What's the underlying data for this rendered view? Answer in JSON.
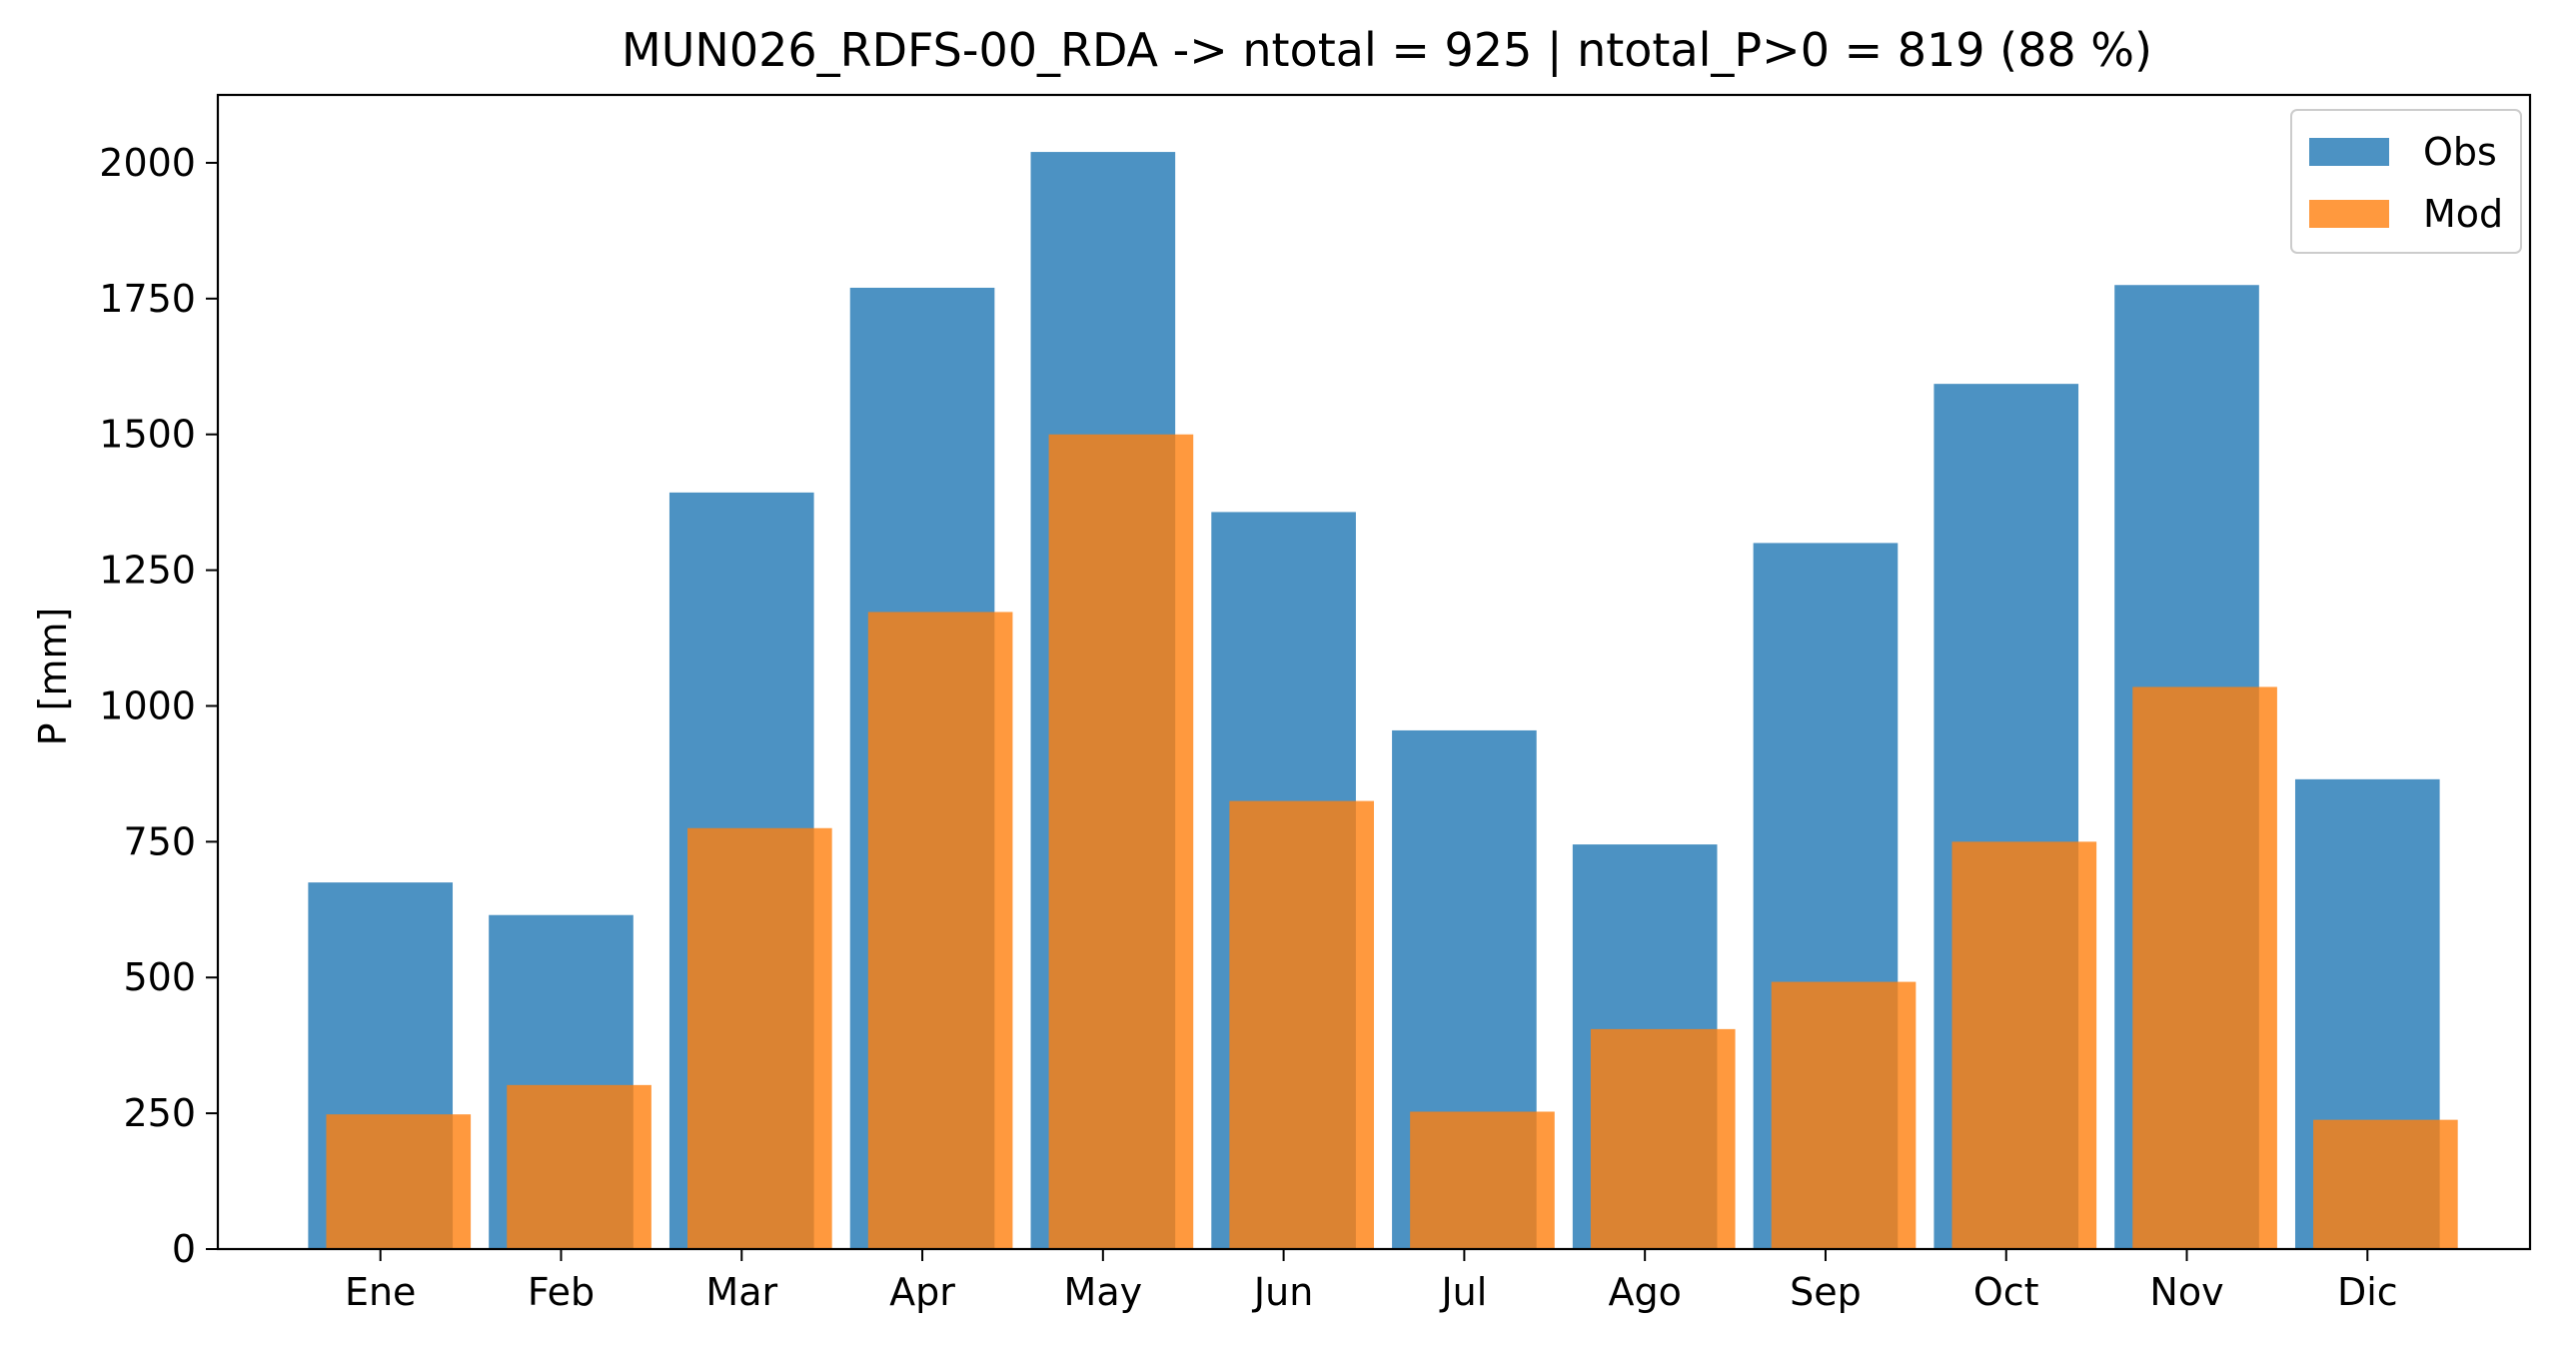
{
  "chart_data": {
    "type": "bar",
    "title": "MUN026_RDFS-00_RDA -> ntotal = 925 | ntotal_P>0 = 819 (88 %)",
    "xlabel": "",
    "ylabel": "P [mm]",
    "categories": [
      "Ene",
      "Feb",
      "Mar",
      "Apr",
      "May",
      "Jun",
      "Jul",
      "Ago",
      "Sep",
      "Oct",
      "Nov",
      "Dic"
    ],
    "series": [
      {
        "name": "Obs",
        "color": "#1f77b4",
        "opacity": 0.8,
        "values": [
          675,
          615,
          1393,
          1770,
          2020,
          1357,
          955,
          745,
          1300,
          1593,
          1775,
          865
        ]
      },
      {
        "name": "Mod",
        "color": "#ff7f0e",
        "opacity": 0.8,
        "values": [
          248,
          302,
          775,
          1173,
          1500,
          825,
          253,
          405,
          492,
          750,
          1035,
          238
        ]
      }
    ],
    "ylim": [
      0,
      2125
    ],
    "yticks": [
      "0",
      "250",
      "500",
      "750",
      "1000",
      "1250",
      "1500",
      "1750",
      "2000"
    ],
    "grid": false,
    "legend_position": "top-right"
  }
}
